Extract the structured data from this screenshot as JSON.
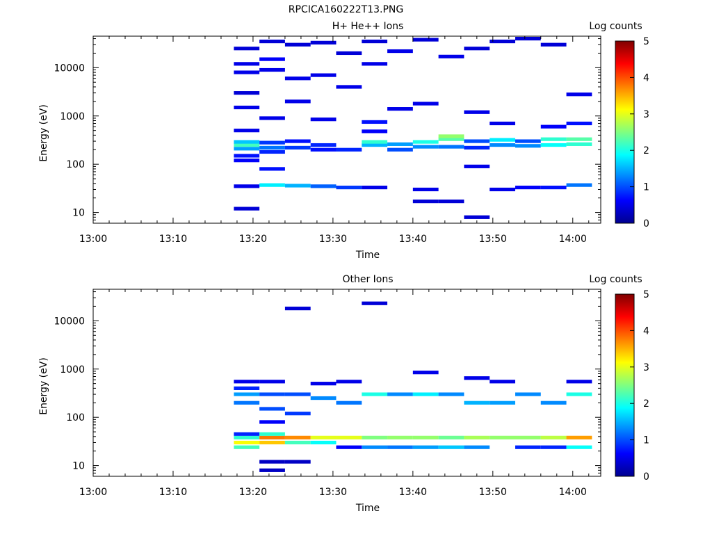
{
  "figure_title": "RPCICA160222T13.PNG",
  "colorbar": {
    "label": "Log counts",
    "ticks": [
      0,
      1,
      2,
      3,
      4,
      5
    ],
    "colormap": [
      "#00008f",
      "#0000ff",
      "#0080ff",
      "#00ffff",
      "#80ff80",
      "#ffff00",
      "#ff8000",
      "#ff0000",
      "#800000"
    ]
  },
  "chart_data": [
    {
      "type": "heatmap",
      "title": "H+ He++ Ions",
      "xlabel": "Time",
      "ylabel": "Energy (eV)",
      "x_ticks": [
        "13:00",
        "13:10",
        "13:20",
        "13:30",
        "13:40",
        "13:50",
        "14:00"
      ],
      "x_range_min": [
        0,
        63.5
      ],
      "y_ticks": [
        10,
        100,
        1000,
        10000
      ],
      "y_scale": "log",
      "ylim": [
        6,
        45000
      ],
      "z_label": "Log counts",
      "zlim": [
        0,
        5
      ],
      "time_bins_min": [
        17.6,
        20.8,
        24.0,
        27.2,
        30.4,
        33.6,
        36.8,
        40.0,
        43.2,
        46.4,
        49.6,
        52.8,
        56.0,
        59.2,
        62.4
      ],
      "cells": [
        {
          "t": 17.6,
          "e": 12,
          "z": 0.4
        },
        {
          "t": 17.6,
          "e": 35,
          "z": 0.5
        },
        {
          "t": 17.6,
          "e": 120,
          "z": 0.6
        },
        {
          "t": 17.6,
          "e": 150,
          "z": 0.7
        },
        {
          "t": 17.6,
          "e": 210,
          "z": 1.4
        },
        {
          "t": 17.6,
          "e": 250,
          "z": 2.2
        },
        {
          "t": 17.6,
          "e": 290,
          "z": 1.6
        },
        {
          "t": 17.6,
          "e": 500,
          "z": 0.5
        },
        {
          "t": 17.6,
          "e": 1500,
          "z": 0.5
        },
        {
          "t": 17.6,
          "e": 3000,
          "z": 0.4
        },
        {
          "t": 17.6,
          "e": 8000,
          "z": 0.5
        },
        {
          "t": 17.6,
          "e": 12000,
          "z": 0.5
        },
        {
          "t": 17.6,
          "e": 25000,
          "z": 0.4
        },
        {
          "t": 20.8,
          "e": 37,
          "z": 1.8
        },
        {
          "t": 20.8,
          "e": 80,
          "z": 0.7
        },
        {
          "t": 20.8,
          "e": 180,
          "z": 0.8
        },
        {
          "t": 20.8,
          "e": 220,
          "z": 1.2
        },
        {
          "t": 20.8,
          "e": 280,
          "z": 0.9
        },
        {
          "t": 20.8,
          "e": 900,
          "z": 0.5
        },
        {
          "t": 20.8,
          "e": 9000,
          "z": 0.5
        },
        {
          "t": 20.8,
          "e": 15000,
          "z": 0.6
        },
        {
          "t": 20.8,
          "e": 35000,
          "z": 0.4
        },
        {
          "t": 24.0,
          "e": 36,
          "z": 1.5
        },
        {
          "t": 24.0,
          "e": 220,
          "z": 0.9
        },
        {
          "t": 24.0,
          "e": 300,
          "z": 0.7
        },
        {
          "t": 24.0,
          "e": 2000,
          "z": 0.5
        },
        {
          "t": 24.0,
          "e": 6000,
          "z": 0.5
        },
        {
          "t": 24.0,
          "e": 30000,
          "z": 0.4
        },
        {
          "t": 27.2,
          "e": 35,
          "z": 1.1
        },
        {
          "t": 27.2,
          "e": 200,
          "z": 0.7
        },
        {
          "t": 27.2,
          "e": 250,
          "z": 0.8
        },
        {
          "t": 27.2,
          "e": 850,
          "z": 0.5
        },
        {
          "t": 27.2,
          "e": 7000,
          "z": 0.5
        },
        {
          "t": 27.2,
          "e": 33000,
          "z": 0.4
        },
        {
          "t": 30.4,
          "e": 33,
          "z": 0.9
        },
        {
          "t": 30.4,
          "e": 200,
          "z": 0.8
        },
        {
          "t": 30.4,
          "e": 4000,
          "z": 0.5
        },
        {
          "t": 30.4,
          "e": 20000,
          "z": 0.4
        },
        {
          "t": 33.6,
          "e": 33,
          "z": 0.5
        },
        {
          "t": 33.6,
          "e": 250,
          "z": 1.5
        },
        {
          "t": 33.6,
          "e": 290,
          "z": 2.1
        },
        {
          "t": 33.6,
          "e": 480,
          "z": 0.6
        },
        {
          "t": 33.6,
          "e": 750,
          "z": 0.7
        },
        {
          "t": 33.6,
          "e": 12000,
          "z": 0.5
        },
        {
          "t": 33.6,
          "e": 35000,
          "z": 0.4
        },
        {
          "t": 36.8,
          "e": 200,
          "z": 1.0
        },
        {
          "t": 36.8,
          "e": 260,
          "z": 1.4
        },
        {
          "t": 36.8,
          "e": 1400,
          "z": 0.5
        },
        {
          "t": 36.8,
          "e": 22000,
          "z": 0.5
        },
        {
          "t": 40.0,
          "e": 17,
          "z": 0.4
        },
        {
          "t": 40.0,
          "e": 30,
          "z": 0.5
        },
        {
          "t": 40.0,
          "e": 230,
          "z": 1.3
        },
        {
          "t": 40.0,
          "e": 290,
          "z": 2.0
        },
        {
          "t": 40.0,
          "e": 1800,
          "z": 0.5
        },
        {
          "t": 40.0,
          "e": 38000,
          "z": 0.4
        },
        {
          "t": 43.2,
          "e": 17,
          "z": 0.4
        },
        {
          "t": 43.2,
          "e": 230,
          "z": 1.2
        },
        {
          "t": 43.2,
          "e": 330,
          "z": 2.3
        },
        {
          "t": 43.2,
          "e": 380,
          "z": 2.6
        },
        {
          "t": 43.2,
          "e": 17000,
          "z": 0.5
        },
        {
          "t": 46.4,
          "e": 8,
          "z": 0.4
        },
        {
          "t": 46.4,
          "e": 90,
          "z": 0.5
        },
        {
          "t": 46.4,
          "e": 220,
          "z": 0.8
        },
        {
          "t": 46.4,
          "e": 300,
          "z": 1.0
        },
        {
          "t": 46.4,
          "e": 1200,
          "z": 0.5
        },
        {
          "t": 46.4,
          "e": 25000,
          "z": 0.4
        },
        {
          "t": 49.6,
          "e": 30,
          "z": 0.5
        },
        {
          "t": 49.6,
          "e": 250,
          "z": 1.3
        },
        {
          "t": 49.6,
          "e": 320,
          "z": 1.8
        },
        {
          "t": 49.6,
          "e": 700,
          "z": 0.5
        },
        {
          "t": 49.6,
          "e": 35000,
          "z": 0.4
        },
        {
          "t": 52.8,
          "e": 33,
          "z": 0.6
        },
        {
          "t": 52.8,
          "e": 240,
          "z": 1.3
        },
        {
          "t": 52.8,
          "e": 300,
          "z": 1.0
        },
        {
          "t": 52.8,
          "e": 40000,
          "z": 0.4
        },
        {
          "t": 56.0,
          "e": 33,
          "z": 0.7
        },
        {
          "t": 56.0,
          "e": 250,
          "z": 1.9
        },
        {
          "t": 56.0,
          "e": 330,
          "z": 2.1
        },
        {
          "t": 56.0,
          "e": 600,
          "z": 0.6
        },
        {
          "t": 56.0,
          "e": 30000,
          "z": 0.4
        },
        {
          "t": 59.2,
          "e": 37,
          "z": 1.2
        },
        {
          "t": 59.2,
          "e": 260,
          "z": 2.1
        },
        {
          "t": 59.2,
          "e": 330,
          "z": 2.3
        },
        {
          "t": 59.2,
          "e": 700,
          "z": 0.7
        },
        {
          "t": 59.2,
          "e": 2800,
          "z": 0.5
        }
      ]
    },
    {
      "type": "heatmap",
      "title": "Other Ions",
      "xlabel": "Time",
      "ylabel": "Energy (eV)",
      "x_ticks": [
        "13:00",
        "13:10",
        "13:20",
        "13:30",
        "13:40",
        "13:50",
        "14:00"
      ],
      "x_range_min": [
        0,
        63.5
      ],
      "y_ticks": [
        10,
        100,
        1000,
        10000
      ],
      "y_scale": "log",
      "ylim": [
        6,
        45000
      ],
      "z_label": "Log counts",
      "zlim": [
        0,
        5
      ],
      "time_bins_min": [
        17.6,
        20.8,
        24.0,
        27.2,
        30.4,
        33.6,
        36.8,
        40.0,
        43.2,
        46.4,
        49.6,
        52.8,
        56.0,
        59.2,
        62.4
      ],
      "cells": [
        {
          "t": 17.6,
          "e": 24,
          "z": 2.2
        },
        {
          "t": 17.6,
          "e": 30,
          "z": 3.1
        },
        {
          "t": 17.6,
          "e": 38,
          "z": 2.1
        },
        {
          "t": 17.6,
          "e": 45,
          "z": 0.8
        },
        {
          "t": 17.6,
          "e": 200,
          "z": 1.2
        },
        {
          "t": 17.6,
          "e": 300,
          "z": 1.4
        },
        {
          "t": 17.6,
          "e": 400,
          "z": 0.8
        },
        {
          "t": 17.6,
          "e": 550,
          "z": 0.5
        },
        {
          "t": 20.8,
          "e": 8,
          "z": 0.3
        },
        {
          "t": 20.8,
          "e": 12,
          "z": 0.3
        },
        {
          "t": 20.8,
          "e": 30,
          "z": 3.4
        },
        {
          "t": 20.8,
          "e": 38,
          "z": 3.8
        },
        {
          "t": 20.8,
          "e": 45,
          "z": 2.1
        },
        {
          "t": 20.8,
          "e": 80,
          "z": 0.6
        },
        {
          "t": 20.8,
          "e": 150,
          "z": 1.0
        },
        {
          "t": 20.8,
          "e": 300,
          "z": 1.0
        },
        {
          "t": 20.8,
          "e": 550,
          "z": 0.5
        },
        {
          "t": 24.0,
          "e": 12,
          "z": 0.3
        },
        {
          "t": 24.0,
          "e": 30,
          "z": 2.2
        },
        {
          "t": 24.0,
          "e": 38,
          "z": 3.7
        },
        {
          "t": 24.0,
          "e": 120,
          "z": 0.9
        },
        {
          "t": 24.0,
          "e": 300,
          "z": 1.0
        },
        {
          "t": 24.0,
          "e": 18000,
          "z": 0.4
        },
        {
          "t": 27.2,
          "e": 30,
          "z": 1.9
        },
        {
          "t": 27.2,
          "e": 38,
          "z": 3.0
        },
        {
          "t": 27.2,
          "e": 250,
          "z": 1.3
        },
        {
          "t": 27.2,
          "e": 500,
          "z": 0.5
        },
        {
          "t": 30.4,
          "e": 24,
          "z": 0.6
        },
        {
          "t": 30.4,
          "e": 38,
          "z": 3.0
        },
        {
          "t": 30.4,
          "e": 200,
          "z": 1.2
        },
        {
          "t": 30.4,
          "e": 550,
          "z": 0.5
        },
        {
          "t": 33.6,
          "e": 24,
          "z": 1.3
        },
        {
          "t": 33.6,
          "e": 38,
          "z": 2.5
        },
        {
          "t": 33.6,
          "e": 300,
          "z": 2.0
        },
        {
          "t": 33.6,
          "e": 23000,
          "z": 0.4
        },
        {
          "t": 36.8,
          "e": 24,
          "z": 1.2
        },
        {
          "t": 36.8,
          "e": 38,
          "z": 2.6
        },
        {
          "t": 36.8,
          "e": 300,
          "z": 1.3
        },
        {
          "t": 40.0,
          "e": 24,
          "z": 1.4
        },
        {
          "t": 40.0,
          "e": 38,
          "z": 2.6
        },
        {
          "t": 40.0,
          "e": 300,
          "z": 1.8
        },
        {
          "t": 40.0,
          "e": 850,
          "z": 0.5
        },
        {
          "t": 43.2,
          "e": 24,
          "z": 1.6
        },
        {
          "t": 43.2,
          "e": 38,
          "z": 2.4
        },
        {
          "t": 43.2,
          "e": 300,
          "z": 1.3
        },
        {
          "t": 46.4,
          "e": 24,
          "z": 1.3
        },
        {
          "t": 46.4,
          "e": 38,
          "z": 2.7
        },
        {
          "t": 46.4,
          "e": 200,
          "z": 1.5
        },
        {
          "t": 46.4,
          "e": 650,
          "z": 0.5
        },
        {
          "t": 49.6,
          "e": 38,
          "z": 2.6
        },
        {
          "t": 49.6,
          "e": 200,
          "z": 1.4
        },
        {
          "t": 49.6,
          "e": 550,
          "z": 0.5
        },
        {
          "t": 52.8,
          "e": 24,
          "z": 0.8
        },
        {
          "t": 52.8,
          "e": 38,
          "z": 2.6
        },
        {
          "t": 52.8,
          "e": 300,
          "z": 1.3
        },
        {
          "t": 56.0,
          "e": 24,
          "z": 0.8
        },
        {
          "t": 56.0,
          "e": 38,
          "z": 2.8
        },
        {
          "t": 56.0,
          "e": 200,
          "z": 1.3
        },
        {
          "t": 59.2,
          "e": 24,
          "z": 1.9
        },
        {
          "t": 59.2,
          "e": 38,
          "z": 3.6
        },
        {
          "t": 59.2,
          "e": 300,
          "z": 2.0
        },
        {
          "t": 59.2,
          "e": 550,
          "z": 0.5
        }
      ]
    }
  ]
}
